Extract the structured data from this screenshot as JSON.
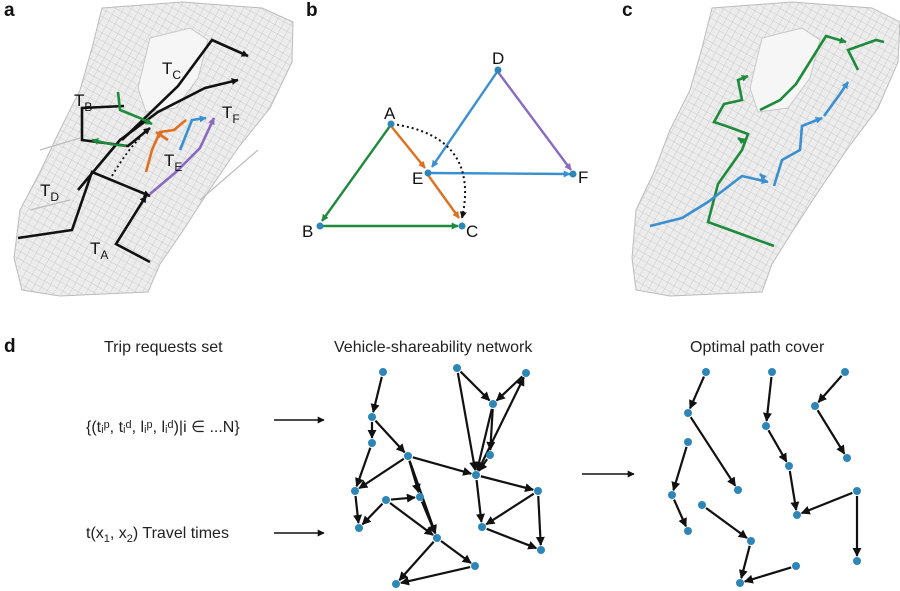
{
  "panels": {
    "a": {
      "label": "a",
      "trips": [
        {
          "base": "T",
          "sub": "C"
        },
        {
          "base": "T",
          "sub": "B"
        },
        {
          "base": "T",
          "sub": "F"
        },
        {
          "base": "T",
          "sub": "E"
        },
        {
          "base": "T",
          "sub": "D"
        },
        {
          "base": "T",
          "sub": "A"
        }
      ]
    },
    "b": {
      "label": "b",
      "nodes": [
        "A",
        "B",
        "C",
        "D",
        "E",
        "F"
      ]
    },
    "c": {
      "label": "c"
    },
    "d": {
      "label": "d",
      "headers": [
        "Trip requests set",
        "Vehicle-shareability network",
        "Optimal path cover"
      ],
      "formula": "{(tᵢᵖ, tᵢᵈ, lᵢᵖ, lᵢᵈ)|i ∈ ...N}",
      "travel_prefix": "t(x",
      "travel_mid": ", x",
      "travel_suffix": ")  Travel times",
      "sub1": "1",
      "sub2": "2"
    }
  },
  "colors": {
    "green": "#1e8a3c",
    "orange": "#e07020",
    "blue": "#3a8fd0",
    "purple": "#8a6ac0",
    "node": "#2e86b8",
    "map_fill": "#e9e9e9",
    "street": "#c9c9c9"
  }
}
